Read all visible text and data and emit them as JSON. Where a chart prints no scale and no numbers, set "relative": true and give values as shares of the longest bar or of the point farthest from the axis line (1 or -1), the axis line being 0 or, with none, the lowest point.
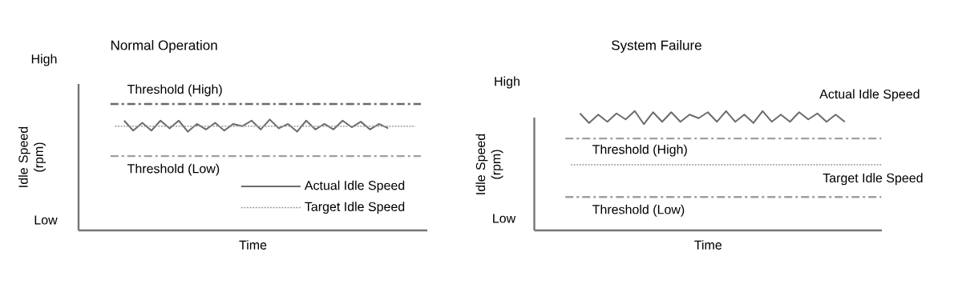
{
  "chart_data": [
    {
      "type": "line",
      "title": "Normal Operation",
      "xlabel": "Time",
      "ylabel": "Idle Speed (rpm)",
      "relative": true,
      "legend": "bottom right",
      "categories": [
        null,
        null,
        null,
        null,
        null,
        null,
        null,
        null,
        null,
        null,
        null,
        null,
        null,
        null,
        null,
        null,
        null,
        null,
        null,
        null,
        null,
        null,
        null,
        null,
        null,
        null,
        null,
        null,
        null,
        null,
        null,
        null,
        null,
        null,
        null,
        null,
        null,
        null,
        null
      ],
      "series": [
        {
          "name": "Actual Idle Speed",
          "color": "#6e6a69",
          "line_style": "solid",
          "values": [
            null,
            null,
            null,
            null,
            null,
            0.99,
            0.9,
            0.97,
            0.9,
            0.99,
            0.92,
            0.99,
            0.89,
            0.96,
            0.91,
            0.97,
            0.9,
            0.96,
            0.94,
            0.99,
            0.91,
            1.0,
            0.92,
            0.96,
            0.89,
            0.99,
            0.91,
            0.96,
            0.91,
            0.99,
            0.93,
            0.98,
            0.91,
            0.96,
            0.92,
            null,
            null,
            null,
            null
          ]
        },
        {
          "name": "Target Idle Speed",
          "color": "#9c9a9a",
          "line_style": "dotted",
          "values": [
            null,
            null,
            null,
            null,
            0.94,
            0.94,
            0.94,
            0.94,
            0.94,
            0.94,
            0.94,
            0.94,
            0.94,
            0.94,
            0.94,
            0.94,
            0.94,
            0.94,
            0.94,
            0.94,
            0.94,
            0.94,
            0.94,
            0.94,
            0.94,
            0.94,
            0.94,
            0.94,
            0.94,
            0.94,
            0.94,
            0.94,
            0.94,
            0.94,
            0.94,
            0.94,
            0.94,
            0.94,
            null
          ]
        }
      ],
      "ref_lines": [
        {
          "axis": "y",
          "value": 1.14,
          "label": "Threshold (High)",
          "color": "#6e6866",
          "line_style": "dashdot"
        },
        {
          "axis": "y",
          "value": 0.67,
          "label": "Threshold (Low)",
          "color": "#a39e9c",
          "line_style": "dashdot"
        }
      ],
      "annotations": [
        "High",
        "Low"
      ]
    },
    {
      "type": "line",
      "title": "System Failure",
      "xlabel": "Time",
      "ylabel": "Idle Speed (rpm)",
      "relative": true,
      "categories": [
        null,
        null,
        null,
        null,
        null,
        null,
        null,
        null,
        null,
        null,
        null,
        null,
        null,
        null,
        null,
        null,
        null,
        null,
        null,
        null,
        null,
        null,
        null,
        null,
        null,
        null,
        null,
        null,
        null,
        null,
        null,
        null,
        null,
        null,
        null,
        null,
        null,
        null,
        null
      ],
      "series": [
        {
          "name": "Actual Idle Speed",
          "color": "#6e6a69",
          "line_style": "solid",
          "values": [
            null,
            null,
            null,
            null,
            null,
            0.98,
            0.9,
            0.97,
            0.91,
            0.98,
            0.93,
            1.0,
            0.89,
            0.99,
            0.91,
            0.99,
            0.91,
            0.97,
            0.94,
            0.99,
            0.91,
            1.0,
            0.91,
            0.97,
            0.9,
            1.0,
            0.91,
            0.97,
            0.91,
            0.99,
            0.93,
            0.98,
            0.91,
            0.97,
            0.91,
            null,
            null,
            null,
            null
          ]
        },
        {
          "name": "Target Idle Speed",
          "color": "#9c9a9a",
          "line_style": "dotted",
          "values": [
            null,
            null,
            null,
            null,
            0.55,
            0.55,
            0.55,
            0.55,
            0.55,
            0.55,
            0.55,
            0.55,
            0.55,
            0.55,
            0.55,
            0.55,
            0.55,
            0.55,
            0.55,
            0.55,
            0.55,
            0.55,
            0.55,
            0.55,
            0.55,
            0.55,
            0.55,
            0.55,
            0.55,
            0.55,
            0.55,
            0.55,
            0.55,
            0.55,
            0.55,
            0.55,
            0.55,
            0.55,
            0.55
          ]
        }
      ],
      "ref_lines": [
        {
          "axis": "y",
          "value": 0.77,
          "label": "Threshold (High)",
          "color": "#a39e9c",
          "line_style": "dashdot"
        },
        {
          "axis": "y",
          "value": 0.28,
          "label": "Threshold (Low)",
          "color": "#a39e9c",
          "line_style": "dashdot"
        }
      ],
      "annotations": [
        "High",
        "Low"
      ]
    }
  ]
}
